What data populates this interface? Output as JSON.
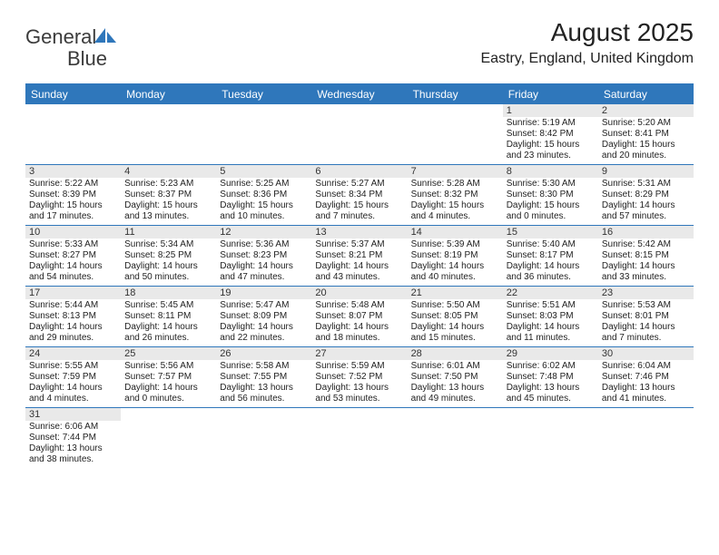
{
  "logo": {
    "general": "General",
    "blue": "Blue"
  },
  "title": "August 2025",
  "location": "Eastry, England, United Kingdom",
  "brand_color": "#2f77bb",
  "daynum_bg": "#e9e9e9",
  "dow": [
    "Sunday",
    "Monday",
    "Tuesday",
    "Wednesday",
    "Thursday",
    "Friday",
    "Saturday"
  ],
  "weeks": [
    [
      {
        "n": "",
        "sunrise": "",
        "sunset": "",
        "day_h": "",
        "day_m": ""
      },
      {
        "n": "",
        "sunrise": "",
        "sunset": "",
        "day_h": "",
        "day_m": ""
      },
      {
        "n": "",
        "sunrise": "",
        "sunset": "",
        "day_h": "",
        "day_m": ""
      },
      {
        "n": "",
        "sunrise": "",
        "sunset": "",
        "day_h": "",
        "day_m": ""
      },
      {
        "n": "",
        "sunrise": "",
        "sunset": "",
        "day_h": "",
        "day_m": ""
      },
      {
        "n": "1",
        "sunrise": "5:19 AM",
        "sunset": "8:42 PM",
        "day_h": "15",
        "day_m": "23"
      },
      {
        "n": "2",
        "sunrise": "5:20 AM",
        "sunset": "8:41 PM",
        "day_h": "15",
        "day_m": "20"
      }
    ],
    [
      {
        "n": "3",
        "sunrise": "5:22 AM",
        "sunset": "8:39 PM",
        "day_h": "15",
        "day_m": "17"
      },
      {
        "n": "4",
        "sunrise": "5:23 AM",
        "sunset": "8:37 PM",
        "day_h": "15",
        "day_m": "13"
      },
      {
        "n": "5",
        "sunrise": "5:25 AM",
        "sunset": "8:36 PM",
        "day_h": "15",
        "day_m": "10"
      },
      {
        "n": "6",
        "sunrise": "5:27 AM",
        "sunset": "8:34 PM",
        "day_h": "15",
        "day_m": "7"
      },
      {
        "n": "7",
        "sunrise": "5:28 AM",
        "sunset": "8:32 PM",
        "day_h": "15",
        "day_m": "4"
      },
      {
        "n": "8",
        "sunrise": "5:30 AM",
        "sunset": "8:30 PM",
        "day_h": "15",
        "day_m": "0"
      },
      {
        "n": "9",
        "sunrise": "5:31 AM",
        "sunset": "8:29 PM",
        "day_h": "14",
        "day_m": "57"
      }
    ],
    [
      {
        "n": "10",
        "sunrise": "5:33 AM",
        "sunset": "8:27 PM",
        "day_h": "14",
        "day_m": "54"
      },
      {
        "n": "11",
        "sunrise": "5:34 AM",
        "sunset": "8:25 PM",
        "day_h": "14",
        "day_m": "50"
      },
      {
        "n": "12",
        "sunrise": "5:36 AM",
        "sunset": "8:23 PM",
        "day_h": "14",
        "day_m": "47"
      },
      {
        "n": "13",
        "sunrise": "5:37 AM",
        "sunset": "8:21 PM",
        "day_h": "14",
        "day_m": "43"
      },
      {
        "n": "14",
        "sunrise": "5:39 AM",
        "sunset": "8:19 PM",
        "day_h": "14",
        "day_m": "40"
      },
      {
        "n": "15",
        "sunrise": "5:40 AM",
        "sunset": "8:17 PM",
        "day_h": "14",
        "day_m": "36"
      },
      {
        "n": "16",
        "sunrise": "5:42 AM",
        "sunset": "8:15 PM",
        "day_h": "14",
        "day_m": "33"
      }
    ],
    [
      {
        "n": "17",
        "sunrise": "5:44 AM",
        "sunset": "8:13 PM",
        "day_h": "14",
        "day_m": "29"
      },
      {
        "n": "18",
        "sunrise": "5:45 AM",
        "sunset": "8:11 PM",
        "day_h": "14",
        "day_m": "26"
      },
      {
        "n": "19",
        "sunrise": "5:47 AM",
        "sunset": "8:09 PM",
        "day_h": "14",
        "day_m": "22"
      },
      {
        "n": "20",
        "sunrise": "5:48 AM",
        "sunset": "8:07 PM",
        "day_h": "14",
        "day_m": "18"
      },
      {
        "n": "21",
        "sunrise": "5:50 AM",
        "sunset": "8:05 PM",
        "day_h": "14",
        "day_m": "15"
      },
      {
        "n": "22",
        "sunrise": "5:51 AM",
        "sunset": "8:03 PM",
        "day_h": "14",
        "day_m": "11"
      },
      {
        "n": "23",
        "sunrise": "5:53 AM",
        "sunset": "8:01 PM",
        "day_h": "14",
        "day_m": "7"
      }
    ],
    [
      {
        "n": "24",
        "sunrise": "5:55 AM",
        "sunset": "7:59 PM",
        "day_h": "14",
        "day_m": "4"
      },
      {
        "n": "25",
        "sunrise": "5:56 AM",
        "sunset": "7:57 PM",
        "day_h": "14",
        "day_m": "0"
      },
      {
        "n": "26",
        "sunrise": "5:58 AM",
        "sunset": "7:55 PM",
        "day_h": "13",
        "day_m": "56"
      },
      {
        "n": "27",
        "sunrise": "5:59 AM",
        "sunset": "7:52 PM",
        "day_h": "13",
        "day_m": "53"
      },
      {
        "n": "28",
        "sunrise": "6:01 AM",
        "sunset": "7:50 PM",
        "day_h": "13",
        "day_m": "49"
      },
      {
        "n": "29",
        "sunrise": "6:02 AM",
        "sunset": "7:48 PM",
        "day_h": "13",
        "day_m": "45"
      },
      {
        "n": "30",
        "sunrise": "6:04 AM",
        "sunset": "7:46 PM",
        "day_h": "13",
        "day_m": "41"
      }
    ],
    [
      {
        "n": "31",
        "sunrise": "6:06 AM",
        "sunset": "7:44 PM",
        "day_h": "13",
        "day_m": "38"
      },
      {
        "n": "",
        "sunrise": "",
        "sunset": "",
        "day_h": "",
        "day_m": ""
      },
      {
        "n": "",
        "sunrise": "",
        "sunset": "",
        "day_h": "",
        "day_m": ""
      },
      {
        "n": "",
        "sunrise": "",
        "sunset": "",
        "day_h": "",
        "day_m": ""
      },
      {
        "n": "",
        "sunrise": "",
        "sunset": "",
        "day_h": "",
        "day_m": ""
      },
      {
        "n": "",
        "sunrise": "",
        "sunset": "",
        "day_h": "",
        "day_m": ""
      },
      {
        "n": "",
        "sunrise": "",
        "sunset": "",
        "day_h": "",
        "day_m": ""
      }
    ]
  ],
  "labels": {
    "sunrise": "Sunrise:",
    "sunset": "Sunset:",
    "daylight_prefix": "Daylight:",
    "hours_word": "hours",
    "and_word": "and",
    "minutes_word": "minutes."
  }
}
